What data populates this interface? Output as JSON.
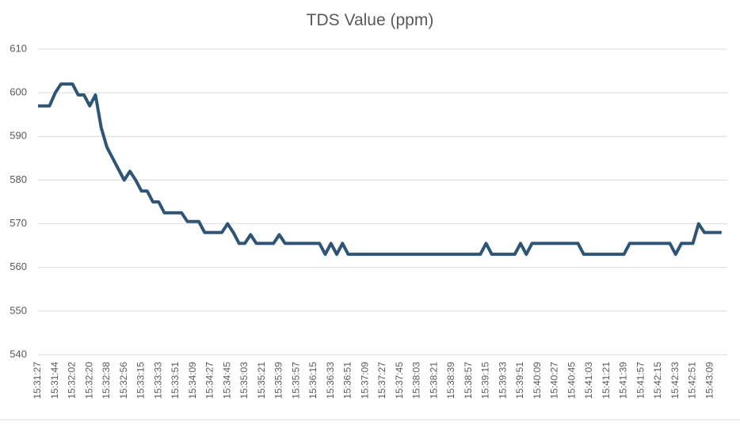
{
  "chart_data": {
    "type": "line",
    "title": "TDS Value (ppm)",
    "categories": [
      "15:31:27",
      null,
      null,
      "15:31:44",
      null,
      null,
      "15:32:02",
      null,
      null,
      "15:32:20",
      null,
      null,
      "15:32:38",
      null,
      null,
      "15:32:56",
      null,
      null,
      "15:33:15",
      null,
      null,
      "15:33:33",
      null,
      null,
      "15:33:51",
      null,
      null,
      "15:34:09",
      null,
      null,
      "15:34:27",
      null,
      null,
      "15:34:45",
      null,
      null,
      "15:35:03",
      null,
      null,
      "15:35:21",
      null,
      null,
      "15:35:39",
      null,
      null,
      "15:35:57",
      null,
      null,
      "15:36:15",
      null,
      null,
      "15:36:33",
      null,
      null,
      "15:36:51",
      null,
      null,
      "15:37:09",
      null,
      null,
      "15:37:27",
      null,
      null,
      "15:37:45",
      null,
      null,
      "15:38:03",
      null,
      null,
      "15:38:21",
      null,
      null,
      "15:38:39",
      null,
      null,
      "15:38:57",
      null,
      null,
      "15:39:15",
      null,
      null,
      "15:39:33",
      null,
      null,
      "15:39:51",
      null,
      null,
      "15:40:09",
      null,
      null,
      "15:40:27",
      null,
      null,
      "15:40:45",
      null,
      null,
      "15:41:03",
      null,
      null,
      "15:41:21",
      null,
      null,
      "15:41:39",
      null,
      null,
      "15:41:57",
      null,
      null,
      "15:42:15",
      null,
      null,
      "15:42:33",
      null,
      null,
      "15:42:51",
      null,
      null,
      "15:43:09",
      null,
      null
    ],
    "series": [
      {
        "color": "#2f5576",
        "values": [
          597,
          597,
          597,
          600,
          602,
          602,
          602,
          599.5,
          599.5,
          597,
          599.5,
          592,
          587.5,
          585,
          582.5,
          580,
          582,
          580,
          577.5,
          577.5,
          575,
          575,
          572.5,
          572.5,
          572.5,
          572.5,
          570.5,
          570.5,
          570.5,
          568,
          568,
          568,
          568,
          570,
          568,
          565.5,
          565.5,
          567.5,
          565.5,
          565.5,
          565.5,
          565.5,
          567.5,
          565.5,
          565.5,
          565.5,
          565.5,
          565.5,
          565.5,
          565.5,
          563,
          565.5,
          563,
          565.5,
          563,
          563,
          563,
          563,
          563,
          563,
          563,
          563,
          563,
          563,
          563,
          563,
          563,
          563,
          563,
          563,
          563,
          563,
          563,
          563,
          563,
          563,
          563,
          563,
          565.5,
          563,
          563,
          563,
          563,
          563,
          565.5,
          563,
          565.5,
          565.5,
          565.5,
          565.5,
          565.5,
          565.5,
          565.5,
          565.5,
          565.5,
          563,
          563,
          563,
          563,
          563,
          563,
          563,
          563,
          565.5,
          565.5,
          565.5,
          565.5,
          565.5,
          565.5,
          565.5,
          565.5,
          563,
          565.5,
          565.5,
          565.5,
          570,
          568,
          568,
          568,
          568
        ]
      }
    ],
    "ylim": [
      540,
      610
    ],
    "yticks": [
      540,
      550,
      560,
      570,
      580,
      590,
      600,
      610
    ],
    "grid": true
  }
}
